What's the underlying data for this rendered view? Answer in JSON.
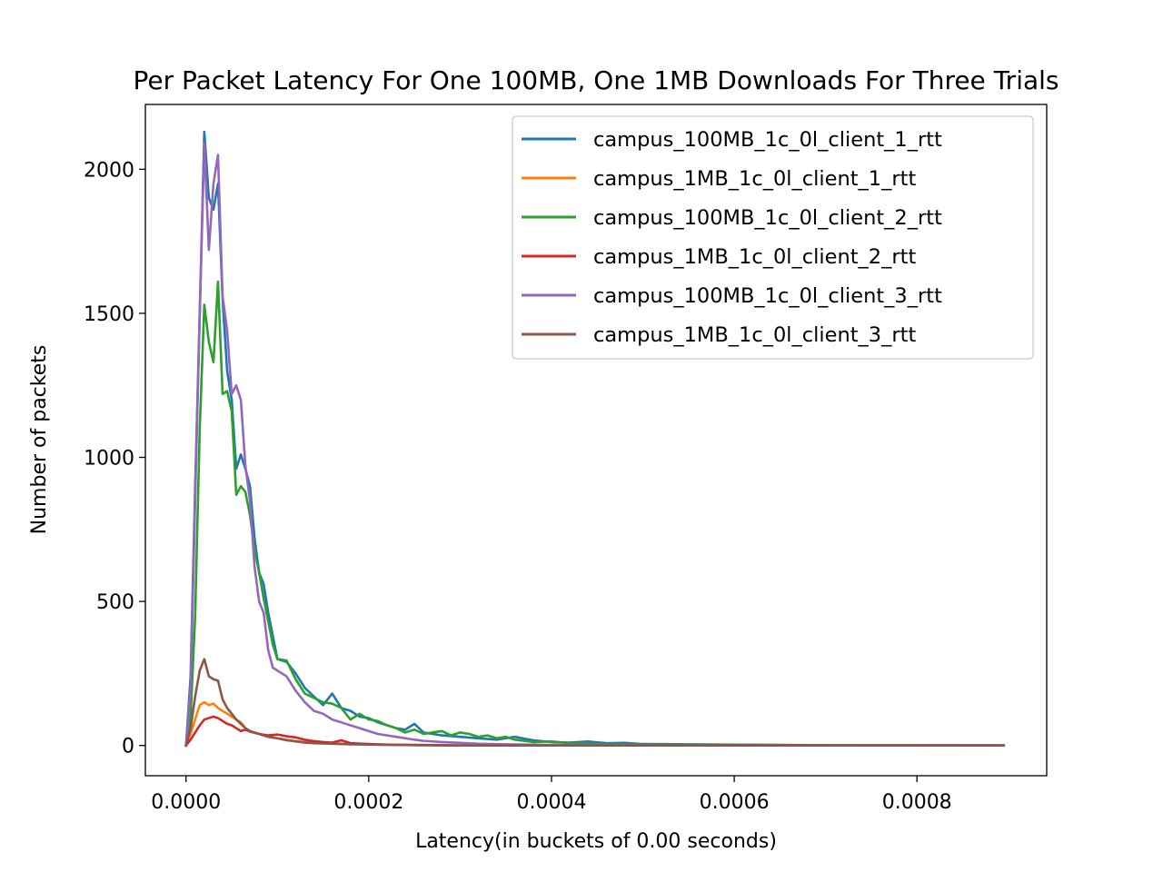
{
  "chart_data": {
    "type": "line",
    "title": "Per Packet Latency For One 100MB, One 1MB Downloads For Three Trials",
    "xlabel": "Latency(in buckets of 0.00 seconds)",
    "ylabel": "Number of packets",
    "xlim": [
      -4.45e-05,
      0.000942
    ],
    "ylim": [
      -105,
      2225
    ],
    "xticks": [
      0,
      0.0002,
      0.0004,
      0.0006,
      0.0008
    ],
    "xtick_labels": [
      "0.0000",
      "0.0002",
      "0.0004",
      "0.0006",
      "0.0008"
    ],
    "yticks": [
      0,
      500,
      1000,
      1500,
      2000
    ],
    "ytick_labels": [
      "0",
      "500",
      "1000",
      "1500",
      "2000"
    ],
    "grid": false,
    "legend_position": "top-right",
    "series": [
      {
        "name": "campus_100MB_1c_0l_client_1_rtt",
        "color": "#1f77b4",
        "points": [
          [
            0,
            0
          ],
          [
            5e-06,
            240
          ],
          [
            1e-05,
            900
          ],
          [
            1.5e-05,
            1500
          ],
          [
            2e-05,
            2130
          ],
          [
            2.5e-05,
            1900
          ],
          [
            3e-05,
            1860
          ],
          [
            3.5e-05,
            1950
          ],
          [
            4e-05,
            1550
          ],
          [
            4.5e-05,
            1300
          ],
          [
            5e-05,
            1200
          ],
          [
            5.5e-05,
            960
          ],
          [
            6e-05,
            1010
          ],
          [
            6.5e-05,
            960
          ],
          [
            7e-05,
            900
          ],
          [
            7.5e-05,
            720
          ],
          [
            8e-05,
            600
          ],
          [
            8.5e-05,
            560
          ],
          [
            9e-05,
            460
          ],
          [
            9.5e-05,
            380
          ],
          [
            0.0001,
            300
          ],
          [
            0.00011,
            290
          ],
          [
            0.00012,
            250
          ],
          [
            0.00013,
            200
          ],
          [
            0.00014,
            170
          ],
          [
            0.00015,
            140
          ],
          [
            0.00016,
            180
          ],
          [
            0.00017,
            130
          ],
          [
            0.00018,
            120
          ],
          [
            0.00019,
            100
          ],
          [
            0.0002,
            95
          ],
          [
            0.00021,
            80
          ],
          [
            0.00022,
            70
          ],
          [
            0.00023,
            60
          ],
          [
            0.00024,
            55
          ],
          [
            0.00025,
            75
          ],
          [
            0.00026,
            45
          ],
          [
            0.00027,
            40
          ],
          [
            0.00028,
            35
          ],
          [
            0.0003,
            30
          ],
          [
            0.00032,
            25
          ],
          [
            0.00034,
            20
          ],
          [
            0.00036,
            30
          ],
          [
            0.00038,
            18
          ],
          [
            0.0004,
            12
          ],
          [
            0.00042,
            10
          ],
          [
            0.00044,
            14
          ],
          [
            0.00046,
            8
          ],
          [
            0.00048,
            9
          ],
          [
            0.0005,
            5
          ],
          [
            0.00055,
            4
          ],
          [
            0.0006,
            3
          ],
          [
            0.0007,
            1
          ],
          [
            0.0008,
            0
          ],
          [
            0.000895,
            0
          ]
        ]
      },
      {
        "name": "campus_1MB_1c_0l_client_1_rtt",
        "color": "#ff7f0e",
        "points": [
          [
            0,
            0
          ],
          [
            5e-06,
            40
          ],
          [
            1e-05,
            90
          ],
          [
            1.5e-05,
            140
          ],
          [
            2e-05,
            150
          ],
          [
            2.5e-05,
            140
          ],
          [
            3e-05,
            145
          ],
          [
            3.5e-05,
            130
          ],
          [
            4e-05,
            120
          ],
          [
            4.5e-05,
            110
          ],
          [
            5e-05,
            100
          ],
          [
            5.5e-05,
            90
          ],
          [
            6e-05,
            80
          ],
          [
            6.5e-05,
            60
          ],
          [
            7e-05,
            50
          ],
          [
            8e-05,
            40
          ],
          [
            9e-05,
            30
          ],
          [
            0.0001,
            25
          ],
          [
            0.00011,
            20
          ],
          [
            0.00012,
            15
          ],
          [
            0.00014,
            10
          ],
          [
            0.00016,
            8
          ],
          [
            0.00018,
            5
          ],
          [
            0.0002,
            3
          ],
          [
            0.00025,
            1
          ],
          [
            0.0003,
            0
          ],
          [
            0.000895,
            0
          ]
        ]
      },
      {
        "name": "campus_100MB_1c_0l_client_2_rtt",
        "color": "#2ca02c",
        "points": [
          [
            0,
            0
          ],
          [
            5e-06,
            100
          ],
          [
            1e-05,
            450
          ],
          [
            1.5e-05,
            1100
          ],
          [
            2e-05,
            1530
          ],
          [
            2.5e-05,
            1400
          ],
          [
            3e-05,
            1330
          ],
          [
            3.5e-05,
            1610
          ],
          [
            4e-05,
            1220
          ],
          [
            4.5e-05,
            1230
          ],
          [
            5e-05,
            1160
          ],
          [
            5.5e-05,
            870
          ],
          [
            6e-05,
            900
          ],
          [
            6.5e-05,
            880
          ],
          [
            7e-05,
            800
          ],
          [
            7.5e-05,
            680
          ],
          [
            8e-05,
            600
          ],
          [
            8.5e-05,
            510
          ],
          [
            9e-05,
            430
          ],
          [
            9.5e-05,
            350
          ],
          [
            0.0001,
            300
          ],
          [
            0.00011,
            295
          ],
          [
            0.00012,
            230
          ],
          [
            0.00013,
            180
          ],
          [
            0.00014,
            165
          ],
          [
            0.00015,
            150
          ],
          [
            0.00016,
            145
          ],
          [
            0.00017,
            130
          ],
          [
            0.00018,
            90
          ],
          [
            0.00019,
            110
          ],
          [
            0.0002,
            90
          ],
          [
            0.00021,
            85
          ],
          [
            0.00022,
            70
          ],
          [
            0.00023,
            60
          ],
          [
            0.00024,
            45
          ],
          [
            0.00025,
            55
          ],
          [
            0.00026,
            40
          ],
          [
            0.00027,
            45
          ],
          [
            0.00028,
            50
          ],
          [
            0.00029,
            35
          ],
          [
            0.0003,
            45
          ],
          [
            0.00031,
            40
          ],
          [
            0.00032,
            30
          ],
          [
            0.00033,
            35
          ],
          [
            0.00034,
            25
          ],
          [
            0.00035,
            30
          ],
          [
            0.00036,
            20
          ],
          [
            0.00038,
            12
          ],
          [
            0.0004,
            14
          ],
          [
            0.00042,
            8
          ],
          [
            0.00045,
            5
          ],
          [
            0.0005,
            3
          ],
          [
            0.0006,
            2
          ],
          [
            0.0007,
            1
          ],
          [
            0.000895,
            0
          ]
        ]
      },
      {
        "name": "campus_1MB_1c_0l_client_2_rtt",
        "color": "#d62728",
        "points": [
          [
            0,
            0
          ],
          [
            5e-06,
            20
          ],
          [
            1e-05,
            45
          ],
          [
            1.5e-05,
            70
          ],
          [
            2e-05,
            90
          ],
          [
            2.5e-05,
            95
          ],
          [
            3e-05,
            100
          ],
          [
            3.5e-05,
            95
          ],
          [
            4e-05,
            85
          ],
          [
            4.5e-05,
            75
          ],
          [
            5e-05,
            70
          ],
          [
            5.5e-05,
            60
          ],
          [
            6e-05,
            50
          ],
          [
            6.5e-05,
            55
          ],
          [
            7e-05,
            48
          ],
          [
            8e-05,
            40
          ],
          [
            9e-05,
            35
          ],
          [
            0.0001,
            38
          ],
          [
            0.00011,
            32
          ],
          [
            0.00012,
            28
          ],
          [
            0.00013,
            20
          ],
          [
            0.00014,
            15
          ],
          [
            0.00015,
            12
          ],
          [
            0.00016,
            10
          ],
          [
            0.00017,
            18
          ],
          [
            0.00018,
            8
          ],
          [
            0.0002,
            5
          ],
          [
            0.00022,
            3
          ],
          [
            0.00025,
            2
          ],
          [
            0.0003,
            0
          ],
          [
            0.000895,
            0
          ]
        ]
      },
      {
        "name": "campus_100MB_1c_0l_client_3_rtt",
        "color": "#9467bd",
        "points": [
          [
            0,
            0
          ],
          [
            5e-06,
            200
          ],
          [
            1e-05,
            850
          ],
          [
            1.5e-05,
            1500
          ],
          [
            2e-05,
            2090
          ],
          [
            2.5e-05,
            1720
          ],
          [
            3e-05,
            1950
          ],
          [
            3.5e-05,
            2050
          ],
          [
            4e-05,
            1560
          ],
          [
            4.5e-05,
            1440
          ],
          [
            5e-05,
            1220
          ],
          [
            5.5e-05,
            1250
          ],
          [
            6e-05,
            1200
          ],
          [
            6.5e-05,
            970
          ],
          [
            7e-05,
            850
          ],
          [
            7.5e-05,
            620
          ],
          [
            8e-05,
            500
          ],
          [
            8.5e-05,
            460
          ],
          [
            9e-05,
            330
          ],
          [
            9.5e-05,
            270
          ],
          [
            0.0001,
            260
          ],
          [
            0.00011,
            240
          ],
          [
            0.00012,
            190
          ],
          [
            0.00013,
            150
          ],
          [
            0.00014,
            120
          ],
          [
            0.00015,
            110
          ],
          [
            0.00016,
            90
          ],
          [
            0.00017,
            80
          ],
          [
            0.00018,
            70
          ],
          [
            0.00019,
            60
          ],
          [
            0.0002,
            50
          ],
          [
            0.00021,
            40
          ],
          [
            0.00022,
            35
          ],
          [
            0.00023,
            30
          ],
          [
            0.00024,
            25
          ],
          [
            0.00025,
            20
          ],
          [
            0.00026,
            16
          ],
          [
            0.00027,
            14
          ],
          [
            0.00028,
            12
          ],
          [
            0.0003,
            9
          ],
          [
            0.00032,
            6
          ],
          [
            0.00035,
            4
          ],
          [
            0.0004,
            2
          ],
          [
            0.0005,
            1
          ],
          [
            0.0006,
            0
          ],
          [
            0.000895,
            0
          ]
        ]
      },
      {
        "name": "campus_1MB_1c_0l_client_3_rtt",
        "color": "#8c564b",
        "points": [
          [
            0,
            0
          ],
          [
            5e-06,
            60
          ],
          [
            1e-05,
            170
          ],
          [
            1.5e-05,
            260
          ],
          [
            2e-05,
            300
          ],
          [
            2.5e-05,
            240
          ],
          [
            3e-05,
            230
          ],
          [
            3.5e-05,
            225
          ],
          [
            4e-05,
            160
          ],
          [
            4.5e-05,
            130
          ],
          [
            5e-05,
            110
          ],
          [
            5.5e-05,
            90
          ],
          [
            6e-05,
            75
          ],
          [
            6.5e-05,
            60
          ],
          [
            7e-05,
            50
          ],
          [
            8e-05,
            40
          ],
          [
            9e-05,
            30
          ],
          [
            0.0001,
            25
          ],
          [
            0.00011,
            18
          ],
          [
            0.00012,
            14
          ],
          [
            0.00013,
            10
          ],
          [
            0.00014,
            8
          ],
          [
            0.00016,
            6
          ],
          [
            0.00018,
            4
          ],
          [
            0.0002,
            3
          ],
          [
            0.00025,
            1
          ],
          [
            0.0003,
            0
          ],
          [
            0.000895,
            0
          ]
        ]
      }
    ]
  }
}
